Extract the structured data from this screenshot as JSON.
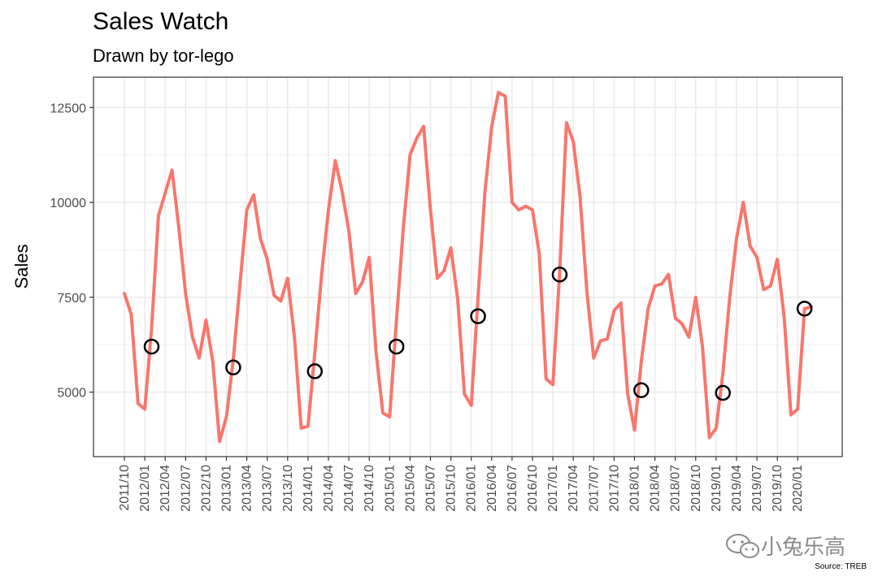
{
  "chart_data": {
    "type": "line",
    "title": "Sales Watch",
    "subtitle": "Drawn by tor-lego",
    "ylabel": "Sales",
    "xlabel": "",
    "caption": "Source: TREB",
    "ylim": [
      3300,
      13300
    ],
    "yticks": [
      5000,
      7500,
      10000,
      12500
    ],
    "ytick_labels": [
      "5000",
      "7500",
      "10000",
      "12500"
    ],
    "xtick_labels": [
      "2011/10",
      "2012/01",
      "2012/04",
      "2012/07",
      "2012/10",
      "2013/01",
      "2013/04",
      "2013/07",
      "2013/10",
      "2014/01",
      "2014/04",
      "2014/07",
      "2014/10",
      "2015/01",
      "2015/04",
      "2015/07",
      "2015/10",
      "2016/01",
      "2016/04",
      "2016/07",
      "2016/10",
      "2017/01",
      "2017/04",
      "2017/07",
      "2017/10",
      "2018/01",
      "2018/04",
      "2018/07",
      "2018/10",
      "2019/01",
      "2019/04",
      "2019/07",
      "2019/10",
      "2020/01"
    ],
    "grid": true,
    "series": [
      {
        "color": "#F8766D",
        "x": [
          "2011/10",
          "2011/11",
          "2011/12",
          "2012/01",
          "2012/02",
          "2012/03",
          "2012/04",
          "2012/05",
          "2012/06",
          "2012/07",
          "2012/08",
          "2012/09",
          "2012/10",
          "2012/11",
          "2012/12",
          "2013/01",
          "2013/02",
          "2013/03",
          "2013/04",
          "2013/05",
          "2013/06",
          "2013/07",
          "2013/08",
          "2013/09",
          "2013/10",
          "2013/11",
          "2013/12",
          "2014/01",
          "2014/02",
          "2014/03",
          "2014/04",
          "2014/05",
          "2014/06",
          "2014/07",
          "2014/08",
          "2014/09",
          "2014/10",
          "2014/11",
          "2014/12",
          "2015/01",
          "2015/02",
          "2015/03",
          "2015/04",
          "2015/05",
          "2015/06",
          "2015/07",
          "2015/08",
          "2015/09",
          "2015/10",
          "2015/11",
          "2015/12",
          "2016/01",
          "2016/02",
          "2016/03",
          "2016/04",
          "2016/05",
          "2016/06",
          "2016/07",
          "2016/08",
          "2016/09",
          "2016/10",
          "2016/11",
          "2016/12",
          "2017/01",
          "2017/02",
          "2017/03",
          "2017/04",
          "2017/05",
          "2017/06",
          "2017/07",
          "2017/08",
          "2017/09",
          "2017/10",
          "2017/11",
          "2017/12",
          "2018/01",
          "2018/02",
          "2018/03",
          "2018/04",
          "2018/05",
          "2018/06",
          "2018/07",
          "2018/08",
          "2018/09",
          "2018/10",
          "2018/11",
          "2018/12",
          "2019/01",
          "2019/02",
          "2019/03",
          "2019/04",
          "2019/05",
          "2019/06",
          "2019/07",
          "2019/08",
          "2019/09",
          "2019/10",
          "2019/11",
          "2019/12",
          "2020/01",
          "2020/02",
          "2020/03"
        ],
        "values": [
          7600,
          7050,
          4700,
          4550,
          6700,
          9650,
          10250,
          10850,
          9350,
          7600,
          6450,
          5900,
          6900,
          5800,
          3700,
          4350,
          5850,
          7850,
          9800,
          10200,
          9050,
          8500,
          7550,
          7400,
          8000,
          6450,
          4050,
          4100,
          6050,
          8100,
          9800,
          11100,
          10300,
          9250,
          7600,
          7900,
          8550,
          6050,
          4450,
          4350,
          6900,
          9300,
          11250,
          11700,
          12000,
          9800,
          8000,
          8200,
          8800,
          7450,
          4950,
          4650,
          7500,
          10250,
          12000,
          12900,
          12800,
          10000,
          9800,
          9900,
          9800,
          8650,
          5350,
          5200,
          8150,
          12100,
          11600,
          10150,
          7650,
          5900,
          6350,
          6400,
          7150,
          7350,
          4950,
          4000,
          5800,
          7200,
          7800,
          7850,
          8100,
          6950,
          6800,
          6450,
          7500,
          6200,
          3800,
          4050,
          5500,
          7500,
          9050,
          10000,
          8850,
          8550,
          7700,
          7800,
          8500,
          7000,
          4400,
          4550,
          7200,
          7250
        ]
      }
    ],
    "highlighted_points": [
      {
        "x": "2012/02",
        "y": 6200
      },
      {
        "x": "2013/02",
        "y": 5650
      },
      {
        "x": "2014/02",
        "y": 5550
      },
      {
        "x": "2015/02",
        "y": 6200
      },
      {
        "x": "2016/02",
        "y": 7000
      },
      {
        "x": "2017/02",
        "y": 8100
      },
      {
        "x": "2018/02",
        "y": 5050
      },
      {
        "x": "2019/02",
        "y": 4980
      },
      {
        "x": "2020/02",
        "y": 7200
      }
    ]
  },
  "watermark": {
    "icon": "wechat-icon",
    "text": "小兔乐高"
  }
}
